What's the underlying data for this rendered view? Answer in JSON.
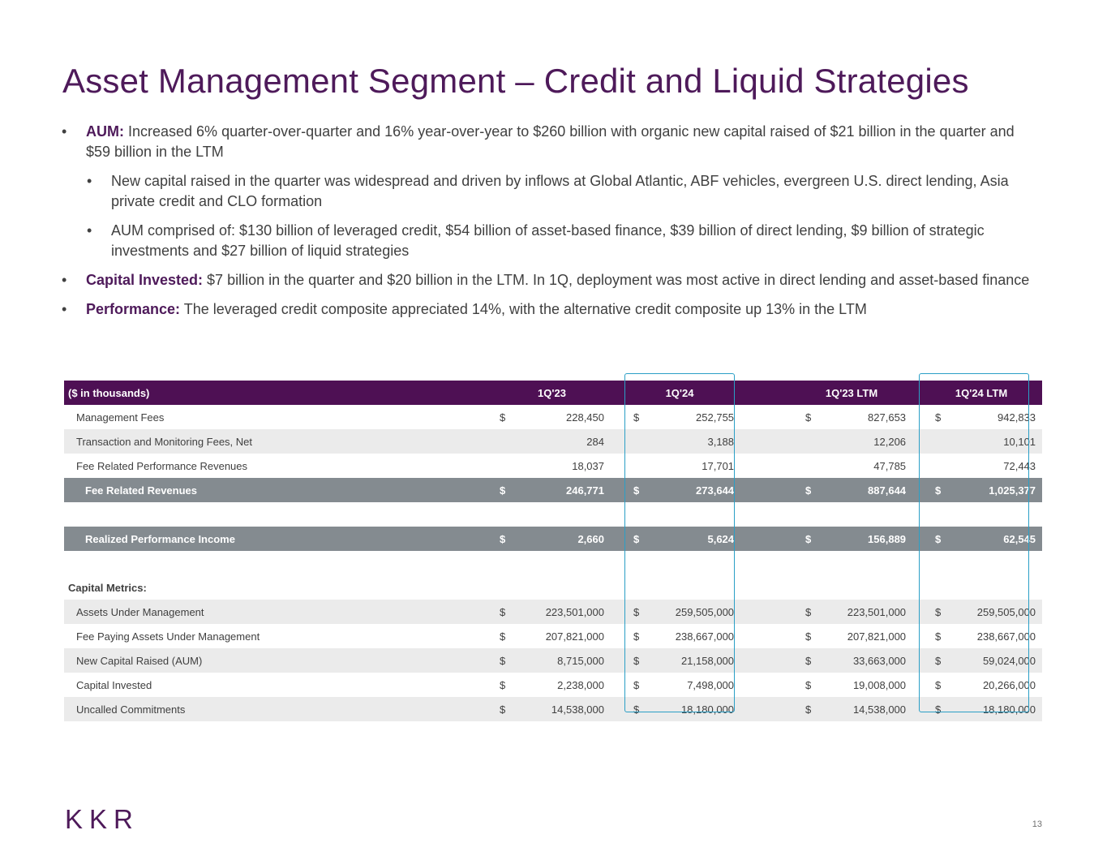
{
  "title": "Asset Management Segment – Credit and Liquid Strategies",
  "bullets": [
    {
      "label": "AUM:",
      "text": " Increased 6% quarter-over-quarter and 16% year-over-year to $260 billion with organic new capital raised of $21 billion in the quarter and $59 billion in the LTM",
      "level": 1
    },
    {
      "label": "",
      "text": "New capital raised in the quarter was widespread and driven by inflows at Global Atlantic, ABF vehicles, evergreen U.S. direct lending, Asia private credit and CLO formation",
      "level": 2
    },
    {
      "label": "",
      "text": "AUM comprised of: $130 billion of leveraged credit, $54 billion of asset-based finance, $39 billion of direct lending, $9 billion of strategic investments and $27 billion of liquid strategies",
      "level": 2
    },
    {
      "label": "Capital Invested:",
      "text": " $7 billion in the quarter and $20 billion in the LTM. In 1Q, deployment was most active in direct lending and asset-based finance",
      "level": 1
    },
    {
      "label": "Performance:",
      "text": " The leveraged credit composite appreciated 14%, with the alternative credit composite up 13% in the LTM",
      "level": 1
    }
  ],
  "table": {
    "header": {
      "label": "($ in thousands)",
      "cols": [
        "1Q'23",
        "1Q'24",
        "1Q'23 LTM",
        "1Q'24 LTM"
      ]
    },
    "rows": [
      {
        "label": "Management Fees",
        "dollar": true,
        "values": [
          "228,450",
          "252,755",
          "827,653",
          "942,833"
        ]
      },
      {
        "label": "Transaction and Monitoring Fees, Net",
        "dollar": false,
        "values": [
          "284",
          "3,188",
          "12,206",
          "10,101"
        ]
      },
      {
        "label": "Fee Related Performance Revenues",
        "dollar": false,
        "values": [
          "18,037",
          "17,701",
          "47,785",
          "72,443"
        ]
      }
    ],
    "fee_related_revenues": {
      "label": "Fee Related Revenues",
      "values": [
        "246,771",
        "273,644",
        "887,644",
        "1,025,377"
      ]
    },
    "realized_performance_income": {
      "label": "Realized Performance Income",
      "values": [
        "2,660",
        "5,624",
        "156,889",
        "62,545"
      ]
    },
    "capital_metrics_label": "Capital Metrics:",
    "capital_rows": [
      {
        "label": "Assets Under Management",
        "values": [
          "223,501,000",
          "259,505,000",
          "223,501,000",
          "259,505,000"
        ]
      },
      {
        "label": "Fee Paying Assets Under Management",
        "values": [
          "207,821,000",
          "238,667,000",
          "207,821,000",
          "238,667,000"
        ]
      },
      {
        "label": "New Capital Raised (AUM)",
        "values": [
          "8,715,000",
          "21,158,000",
          "33,663,000",
          "59,024,000"
        ]
      },
      {
        "label": "Capital Invested",
        "values": [
          "2,238,000",
          "7,498,000",
          "19,008,000",
          "20,266,000"
        ]
      },
      {
        "label": "Uncalled Commitments",
        "values": [
          "14,538,000",
          "18,180,000",
          "14,538,000",
          "18,180,000"
        ]
      }
    ],
    "currency_symbol": "$"
  },
  "logo": "KKR",
  "page_number": "13",
  "colors": {
    "accent": "#4e1a5a",
    "header_bg": "#4e1054",
    "total_bg": "#848b90",
    "highlight": "#2a9fc6",
    "row_alt": "#ebebeb"
  }
}
